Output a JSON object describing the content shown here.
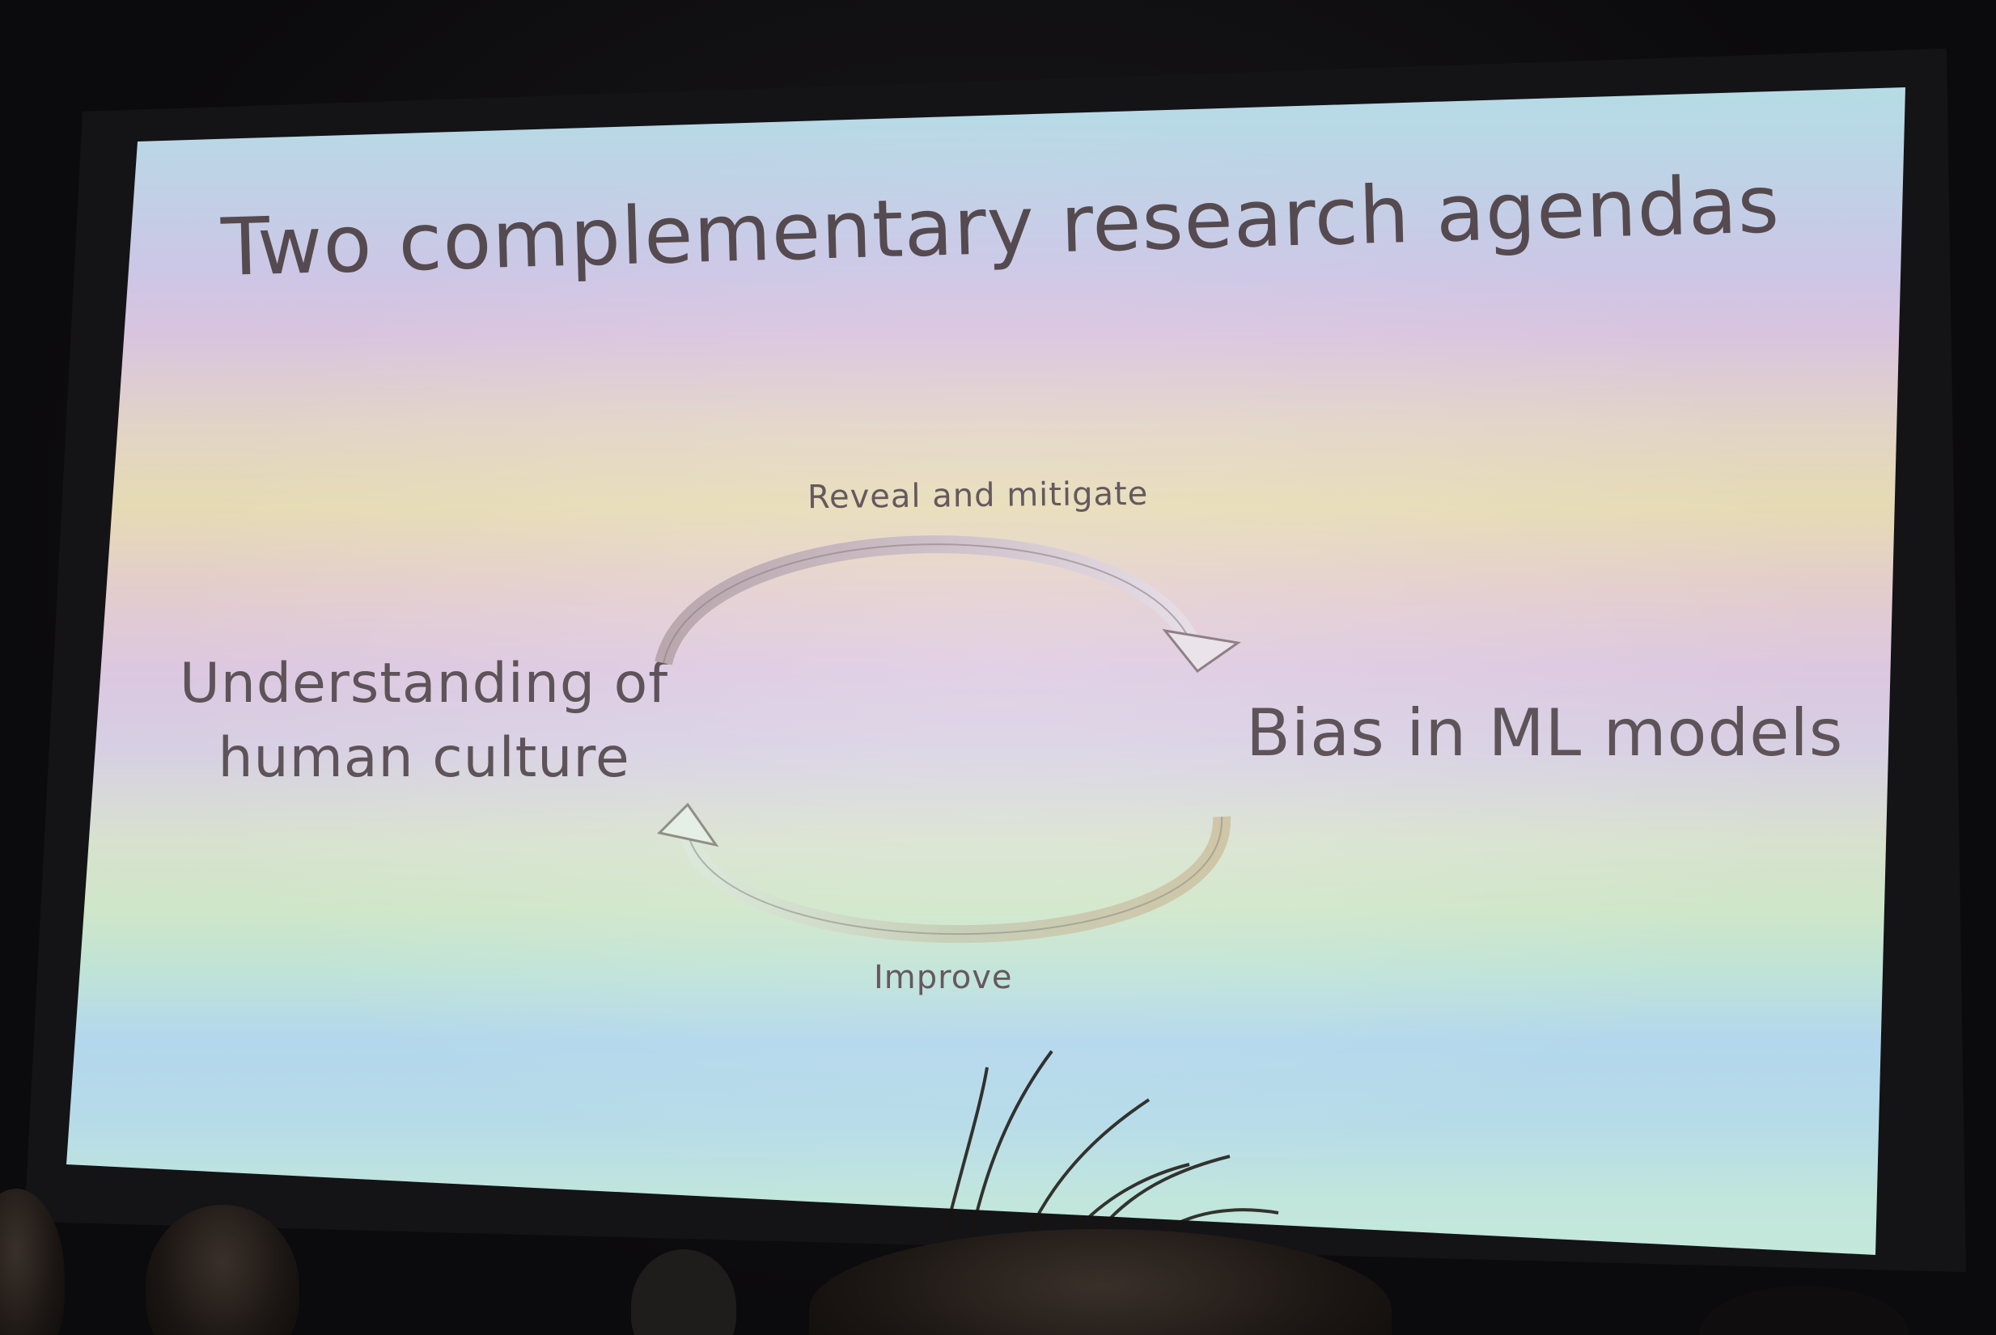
{
  "slide": {
    "title": "Two complementary research agendas",
    "cycle": {
      "top_label": "Reveal and mitigate",
      "bottom_label": "Improve",
      "left_node": "Understanding of\nhuman culture",
      "right_node": "Bias in ML models"
    }
  }
}
